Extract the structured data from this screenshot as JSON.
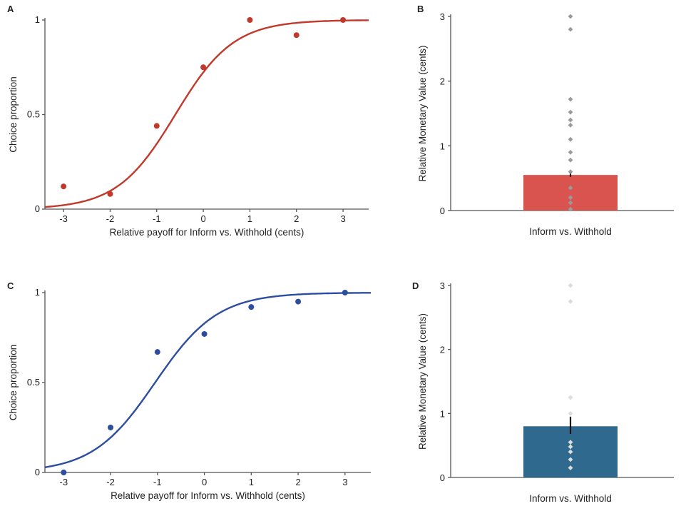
{
  "chart_data": [
    {
      "panel": "A",
      "type": "scatter",
      "x": [
        -3,
        -2,
        -1,
        0,
        1,
        2,
        3
      ],
      "y": [
        0.12,
        0.08,
        0.44,
        0.75,
        1.0,
        0.92,
        1.0
      ],
      "fit_curve": {
        "type": "logistic",
        "slope": 1.6,
        "midpoint": -0.6
      },
      "xlabel": "Relative payoff for Inform vs. Withhold (cents)",
      "ylabel": "Choice proportion",
      "xticks": [
        "-3",
        "-2",
        "-1",
        "0",
        "1",
        "2",
        "3"
      ],
      "yticks": [
        "0",
        "0.5",
        "1"
      ],
      "xlim": [
        -3.4,
        3.55
      ],
      "ylim": [
        0,
        1
      ],
      "color": "#c0392b"
    },
    {
      "panel": "B",
      "type": "bar",
      "categories": [
        "Inform vs. Withhold"
      ],
      "values": [
        0.55
      ],
      "error": [
        0.6,
        0.52
      ],
      "points": [
        3.0,
        2.8,
        1.72,
        1.52,
        1.4,
        1.32,
        1.1,
        0.9,
        0.78,
        0.6,
        0.35,
        0.2,
        0.12,
        0.02
      ],
      "ylabel": "Relative Monetary Value (cents)",
      "yticks": [
        "0",
        "1",
        "2",
        "3"
      ],
      "ylim": [
        0,
        3
      ],
      "bar_color": "#d9534f",
      "point_color": "#9a9a9a"
    },
    {
      "panel": "C",
      "type": "scatter",
      "x": [
        -3,
        -2,
        -1,
        0,
        1,
        2,
        3
      ],
      "y": [
        0.0,
        0.25,
        0.67,
        0.77,
        0.92,
        0.95,
        1.0
      ],
      "fit_curve": {
        "type": "logistic",
        "slope": 1.5,
        "midpoint": -1.05
      },
      "xlabel": "Relative payoff for Inform vs. Withhold (cents)",
      "ylabel": "Choice proportion",
      "xticks": [
        "-3",
        "-2",
        "-1",
        "0",
        "1",
        "2",
        "3"
      ],
      "yticks": [
        "0",
        "0.5",
        "1"
      ],
      "xlim": [
        -3.4,
        3.55
      ],
      "ylim": [
        0,
        1
      ],
      "color": "#2c4da0"
    },
    {
      "panel": "D",
      "type": "bar",
      "categories": [
        "Inform vs. Withhold"
      ],
      "values": [
        0.8
      ],
      "error": [
        0.95,
        0.68
      ],
      "points": [
        3.0,
        2.75,
        1.25,
        1.0,
        0.55,
        0.48,
        0.4,
        0.28,
        0.15
      ],
      "ylabel": "Relative Monetary Value (cents)",
      "yticks": [
        "0",
        "1",
        "2",
        "3"
      ],
      "ylim": [
        0,
        3
      ],
      "bar_color": "#2f6a8e",
      "point_color": "#dcdcdc"
    }
  ]
}
